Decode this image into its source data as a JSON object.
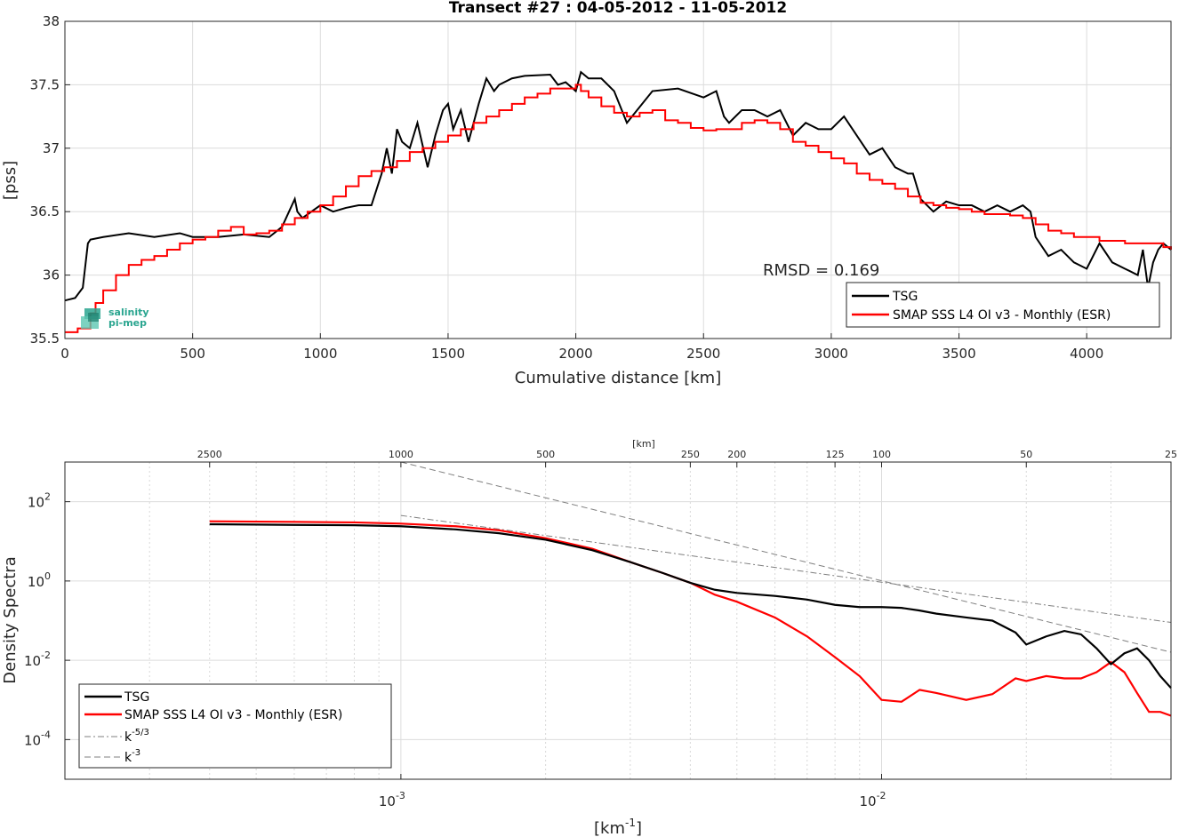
{
  "chart_data": [
    {
      "type": "line",
      "title": "Transect #27 : 04-05-2012 - 11-05-2012",
      "xlabel": "Cumulative distance [km]",
      "ylabel": "[pss]",
      "xlim": [
        0,
        4330
      ],
      "ylim": [
        35.5,
        38
      ],
      "xticks": [
        0,
        500,
        1000,
        1500,
        2000,
        2500,
        3000,
        3500,
        4000
      ],
      "yticks": [
        35.5,
        36,
        36.5,
        37,
        37.5,
        38
      ],
      "xtick_labels": [
        "0",
        "500",
        "1000",
        "1500",
        "2000",
        "2500",
        "3000",
        "3500",
        "4000"
      ],
      "ytick_labels": [
        "35.5",
        "36",
        "36.5",
        "37",
        "37.5",
        "38"
      ],
      "grid": true,
      "legend_position": "bottom-right",
      "annotation": "RMSD = 0.169",
      "series": [
        {
          "name": "TSG",
          "color": "#000000",
          "x": [
            0,
            40,
            70,
            90,
            100,
            150,
            250,
            350,
            450,
            500,
            600,
            700,
            800,
            850,
            900,
            910,
            930,
            1000,
            1050,
            1100,
            1150,
            1200,
            1240,
            1260,
            1280,
            1300,
            1320,
            1350,
            1380,
            1420,
            1450,
            1480,
            1500,
            1520,
            1550,
            1580,
            1600,
            1620,
            1650,
            1680,
            1700,
            1750,
            1800,
            1900,
            1930,
            1960,
            2000,
            2020,
            2050,
            2100,
            2150,
            2200,
            2300,
            2400,
            2500,
            2550,
            2580,
            2600,
            2650,
            2700,
            2750,
            2800,
            2850,
            2900,
            2950,
            3000,
            3050,
            3100,
            3150,
            3200,
            3250,
            3300,
            3320,
            3350,
            3400,
            3450,
            3500,
            3550,
            3600,
            3650,
            3700,
            3750,
            3780,
            3800,
            3850,
            3900,
            3950,
            4000,
            4050,
            4100,
            4150,
            4200,
            4220,
            4240,
            4260,
            4280,
            4300,
            4330
          ],
          "y": [
            35.8,
            35.82,
            35.9,
            36.25,
            36.28,
            36.3,
            36.33,
            36.3,
            36.33,
            36.3,
            36.3,
            36.32,
            36.3,
            36.38,
            36.6,
            36.5,
            36.45,
            36.55,
            36.5,
            36.53,
            36.55,
            36.55,
            36.8,
            37.0,
            36.8,
            37.15,
            37.05,
            37.0,
            37.2,
            36.85,
            37.1,
            37.3,
            37.35,
            37.15,
            37.3,
            37.05,
            37.2,
            37.35,
            37.55,
            37.45,
            37.5,
            37.55,
            37.57,
            37.58,
            37.5,
            37.52,
            37.45,
            37.6,
            37.55,
            37.55,
            37.45,
            37.2,
            37.45,
            37.47,
            37.4,
            37.45,
            37.25,
            37.2,
            37.3,
            37.3,
            37.25,
            37.3,
            37.1,
            37.2,
            37.15,
            37.15,
            37.25,
            37.1,
            36.95,
            37.0,
            36.85,
            36.8,
            36.8,
            36.6,
            36.5,
            36.58,
            36.55,
            36.55,
            36.5,
            36.55,
            36.5,
            36.55,
            36.5,
            36.3,
            36.15,
            36.2,
            36.1,
            36.05,
            36.25,
            36.1,
            36.05,
            36.0,
            36.2,
            35.9,
            36.1,
            36.2,
            36.25,
            36.2
          ]
        },
        {
          "name": "SMAP SSS L4 OI v3 - Monthly (ESR)",
          "color": "#ff0000",
          "x": [
            0,
            50,
            100,
            120,
            150,
            200,
            250,
            300,
            350,
            400,
            450,
            500,
            550,
            600,
            650,
            700,
            750,
            800,
            850,
            900,
            950,
            1000,
            1050,
            1100,
            1150,
            1200,
            1250,
            1300,
            1350,
            1400,
            1450,
            1500,
            1550,
            1600,
            1650,
            1700,
            1750,
            1800,
            1850,
            1900,
            1950,
            2000,
            2020,
            2050,
            2100,
            2150,
            2200,
            2250,
            2300,
            2350,
            2400,
            2450,
            2500,
            2550,
            2600,
            2650,
            2700,
            2750,
            2800,
            2850,
            2900,
            2950,
            3000,
            3050,
            3100,
            3150,
            3200,
            3250,
            3300,
            3350,
            3400,
            3450,
            3500,
            3550,
            3600,
            3650,
            3700,
            3750,
            3800,
            3850,
            3900,
            3950,
            4000,
            4050,
            4100,
            4150,
            4200,
            4250,
            4300,
            4330
          ],
          "y": [
            35.55,
            35.58,
            35.7,
            35.78,
            35.88,
            36.0,
            36.08,
            36.12,
            36.15,
            36.2,
            36.25,
            36.28,
            36.3,
            36.35,
            36.38,
            36.32,
            36.33,
            36.35,
            36.4,
            36.45,
            36.5,
            36.55,
            36.62,
            36.7,
            36.78,
            36.82,
            36.85,
            36.9,
            36.97,
            37.0,
            37.05,
            37.1,
            37.15,
            37.2,
            37.25,
            37.3,
            37.35,
            37.4,
            37.43,
            37.47,
            37.47,
            37.5,
            37.45,
            37.4,
            37.33,
            37.28,
            37.25,
            37.28,
            37.3,
            37.22,
            37.2,
            37.16,
            37.14,
            37.15,
            37.15,
            37.2,
            37.22,
            37.2,
            37.15,
            37.05,
            37.02,
            36.97,
            36.92,
            36.88,
            36.8,
            36.75,
            36.72,
            36.68,
            36.62,
            36.57,
            36.55,
            36.53,
            36.52,
            36.5,
            36.48,
            36.48,
            36.47,
            36.45,
            36.4,
            36.35,
            36.33,
            36.3,
            36.3,
            36.27,
            36.27,
            36.25,
            36.25,
            36.25,
            36.22,
            36.2
          ]
        }
      ]
    },
    {
      "type": "line",
      "xlabel": "[km",
      "xlabel_exp": "-1",
      "xlabel_close": "]",
      "ylabel": "Density Spectra",
      "top_axis_label": "[km]",
      "xscale": "log",
      "yscale": "log",
      "xlim": [
        0.0002,
        0.04
      ],
      "ylim": [
        1e-05,
        1000
      ],
      "xtick_bases": [
        "10",
        "10"
      ],
      "xtick_exps": [
        "-3",
        "-2"
      ],
      "ytick_bases": [
        "10",
        "10",
        "10",
        "10"
      ],
      "ytick_exps": [
        "2",
        "0",
        "-2",
        "-4"
      ],
      "top_ticks": [
        "2500",
        "1000",
        "500",
        "250",
        "200",
        "125",
        "100",
        "50",
        "25"
      ],
      "grid": true,
      "legend_position": "bottom-left",
      "series": [
        {
          "name": "TSG",
          "color": "#000000",
          "x": [
            0.0004,
            0.0006,
            0.0008,
            0.001,
            0.0013,
            0.0016,
            0.002,
            0.0025,
            0.003,
            0.0035,
            0.004,
            0.0045,
            0.005,
            0.006,
            0.007,
            0.008,
            0.009,
            0.01,
            0.011,
            0.012,
            0.013,
            0.015,
            0.017,
            0.019,
            0.02,
            0.022,
            0.024,
            0.026,
            0.028,
            0.03,
            0.032,
            0.034,
            0.036,
            0.038,
            0.04
          ],
          "y": [
            27,
            26,
            25.5,
            24,
            20,
            16,
            11,
            6,
            3,
            1.6,
            0.9,
            0.6,
            0.5,
            0.42,
            0.34,
            0.25,
            0.22,
            0.22,
            0.21,
            0.18,
            0.15,
            0.12,
            0.1,
            0.05,
            0.025,
            0.04,
            0.055,
            0.045,
            0.02,
            0.008,
            0.015,
            0.02,
            0.01,
            0.004,
            0.002
          ]
        },
        {
          "name": "SMAP SSS L4 OI v3 - Monthly (ESR)",
          "color": "#ff0000",
          "x": [
            0.0004,
            0.0006,
            0.0008,
            0.001,
            0.0013,
            0.0016,
            0.002,
            0.0025,
            0.003,
            0.0035,
            0.004,
            0.0045,
            0.005,
            0.006,
            0.007,
            0.008,
            0.009,
            0.01,
            0.011,
            0.012,
            0.013,
            0.015,
            0.017,
            0.019,
            0.02,
            0.022,
            0.024,
            0.026,
            0.028,
            0.03,
            0.032,
            0.034,
            0.036,
            0.038,
            0.04
          ],
          "y": [
            32,
            31,
            30,
            28,
            24,
            19,
            12,
            6.5,
            3,
            1.6,
            0.9,
            0.45,
            0.3,
            0.12,
            0.04,
            0.012,
            0.004,
            0.001,
            0.0009,
            0.0018,
            0.0015,
            0.001,
            0.0014,
            0.0035,
            0.003,
            0.004,
            0.0035,
            0.0035,
            0.005,
            0.009,
            0.005,
            0.0015,
            0.0005,
            0.0005,
            0.0004
          ]
        },
        {
          "name": "k-5/3",
          "color": "#7f7f7f",
          "dash": "dashdot",
          "x": [
            0.001,
            0.04
          ],
          "y": [
            45,
            0.09
          ]
        },
        {
          "name": "k-3",
          "color": "#7f7f7f",
          "dash": "dashed",
          "x": [
            0.001,
            0.04
          ],
          "y": [
            1000,
            0.016
          ]
        }
      ],
      "legend": [
        {
          "label": "TSG"
        },
        {
          "label": "SMAP SSS L4 OI v3 - Monthly (ESR)"
        },
        {
          "label": "k",
          "sup": "-5/3"
        },
        {
          "label": "k",
          "sup": "-3"
        }
      ]
    }
  ],
  "logo": {
    "line1": "salinity",
    "line2": "pi-mep"
  }
}
